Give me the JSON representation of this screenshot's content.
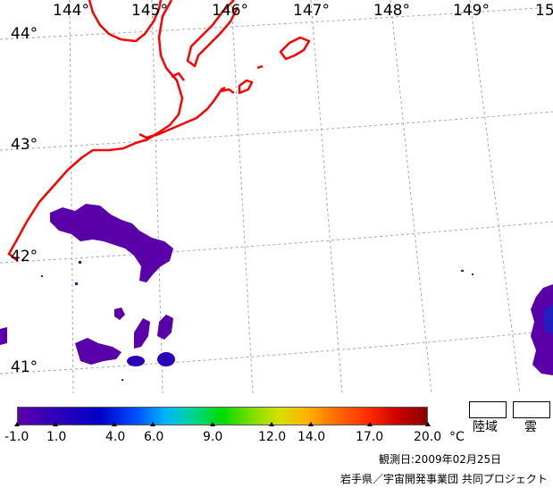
{
  "map": {
    "lat_labels": [
      "44°",
      "43°",
      "42°",
      "41°"
    ],
    "lon_labels": [
      "144°",
      "145°",
      "146°",
      "147°",
      "148°",
      "149°",
      "15"
    ],
    "coastline_color": "#ff0000",
    "graticule_color": "#a0a0a0",
    "low_temp_color": "#5a00a8"
  },
  "colorbar": {
    "ticks": [
      "-1.0",
      "1.0",
      "4.0",
      "6.0",
      "9.0",
      "12.0",
      "14.0",
      "17.0",
      "20.0"
    ],
    "unit": "°C",
    "min": -1.0,
    "max": 20.0
  },
  "legend": {
    "land_label": "陸域",
    "cloud_label": "雲"
  },
  "footer": {
    "obs_date": "観測日:2009年02月25日",
    "credit": "岩手県／宇宙開発事業団 共同プロジェクト"
  }
}
